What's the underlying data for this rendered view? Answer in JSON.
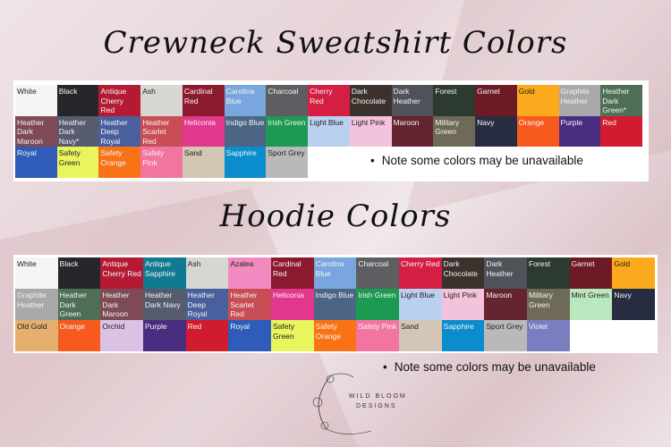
{
  "crewneck": {
    "title": "Crewneck Sweatshirt Colors",
    "note": "Note some colors may be unavailable",
    "swatches": [
      [
        "White",
        "#f4f4f4",
        1
      ],
      [
        "Black",
        "#27272b",
        0
      ],
      [
        "Antique Cherry Red",
        "#b51a33",
        0
      ],
      [
        "Ash",
        "#d8d6d3",
        1
      ],
      [
        "Cardinal Red",
        "#8b1a2e",
        0
      ],
      [
        "Carolina Blue",
        "#79a6dc",
        0
      ],
      [
        "Charcoal",
        "#5e5e62",
        0
      ],
      [
        "Cherry Red",
        "#d41e42",
        0
      ],
      [
        "Dark Chocolate",
        "#3b312d",
        0
      ],
      [
        "Dark Heather",
        "#4f5259",
        0
      ],
      [
        "Forest",
        "#2d3a2f",
        0
      ],
      [
        "Garnet",
        "#6e1a24",
        0
      ],
      [
        "Gold",
        "#fbaa1e",
        1
      ],
      [
        "Graphite Heather",
        "#a9a9ab",
        0
      ],
      [
        "Heather Dark Green*",
        "#4e6e55",
        0
      ],
      [
        "Heather Dark Maroon",
        "#7e4a55",
        0
      ],
      [
        "Heather Dark Navy*",
        "#565b6e",
        0
      ],
      [
        "Heather Deep Royal",
        "#4a5f9e",
        0
      ],
      [
        "Heather Scarlet Red",
        "#c94d55",
        0
      ],
      [
        "Heliconia",
        "#e2378c",
        0
      ],
      [
        "Indigo Blue",
        "#4c6585",
        0
      ],
      [
        "Irish Green",
        "#1c9a52",
        0
      ],
      [
        "Light Blue",
        "#b9d1ee",
        1
      ],
      [
        "Light Pink",
        "#f3c3dc",
        1
      ],
      [
        "Maroon",
        "#652530",
        0
      ],
      [
        "Military Green",
        "#6e6a57",
        0
      ],
      [
        "Navy",
        "#272c40",
        0
      ],
      [
        "Orange",
        "#f85a1e",
        0
      ],
      [
        "Purple",
        "#4b2d80",
        0
      ],
      [
        "Red",
        "#d01c2e",
        0
      ],
      [
        "Royal",
        "#2f5cb8",
        0
      ],
      [
        "Safety Green",
        "#e8f55c",
        1
      ],
      [
        "Safety Orange",
        "#f97316",
        0
      ],
      [
        "Safety Pink",
        "#f275a0",
        0
      ],
      [
        "Sand",
        "#d3c6b5",
        1
      ],
      [
        "Sapphire",
        "#0a8ccd",
        0
      ],
      [
        "Sport Grey",
        "#b9b9b9",
        1
      ]
    ]
  },
  "hoodie": {
    "title": "Hoodie Colors",
    "note": "Note some colors may be unavailable",
    "swatches": [
      [
        "White",
        "#f4f4f4",
        1
      ],
      [
        "Black",
        "#27272b",
        0
      ],
      [
        "Antique Cherry Red",
        "#b51a33",
        0
      ],
      [
        "Antique Sapphire",
        "#0f7a92",
        0
      ],
      [
        "Ash",
        "#d8d6d3",
        1
      ],
      [
        "Azalea",
        "#f28ac2",
        1
      ],
      [
        "Cardinal Red",
        "#8b1a2e",
        0
      ],
      [
        "Carolina Blue",
        "#79a6dc",
        0
      ],
      [
        "Charcoal",
        "#5e5e62",
        0
      ],
      [
        "Cherry Red",
        "#d41e42",
        0
      ],
      [
        "Dark Chocolate",
        "#3b312d",
        0
      ],
      [
        "Dark Heather",
        "#4f5259",
        0
      ],
      [
        "Forest",
        "#2d3a2f",
        0
      ],
      [
        "Garnet",
        "#6e1a24",
        0
      ],
      [
        "Gold",
        "#fbaa1e",
        1
      ],
      [
        "Graphite Heather",
        "#a9a9ab",
        0
      ],
      [
        "Heather Dark Green",
        "#4e6e55",
        0
      ],
      [
        "Heather Dark Maroon",
        "#7e4a55",
        0
      ],
      [
        "Heather Dark Navy",
        "#565b6e",
        0
      ],
      [
        "Heather Deep Royal",
        "#4a5f9e",
        0
      ],
      [
        "Heather Scarlet Red",
        "#c94d55",
        0
      ],
      [
        "Heliconia",
        "#e2378c",
        0
      ],
      [
        "Indigo Blue",
        "#4c6585",
        0
      ],
      [
        "Irish Green",
        "#1c9a52",
        0
      ],
      [
        "Light Blue",
        "#b9d1ee",
        1
      ],
      [
        "Light Pink",
        "#f3c3dc",
        1
      ],
      [
        "Maroon",
        "#652530",
        0
      ],
      [
        "Military Green",
        "#6e6a57",
        0
      ],
      [
        "Mint Green",
        "#b9e8bf",
        1
      ],
      [
        "Navy",
        "#272c40",
        0
      ],
      [
        "Old Gold",
        "#e3b070",
        1
      ],
      [
        "Orange",
        "#f85a1e",
        0
      ],
      [
        "Orchid",
        "#d9c2e4",
        1
      ],
      [
        "Purple",
        "#4b2d80",
        0
      ],
      [
        "Red",
        "#d01c2e",
        0
      ],
      [
        "Royal",
        "#2f5cb8",
        0
      ],
      [
        "Safety Green",
        "#e8f55c",
        1
      ],
      [
        "Safety Orange",
        "#f97316",
        0
      ],
      [
        "Safety Pink",
        "#f275a0",
        0
      ],
      [
        "Sand",
        "#d3c6b5",
        1
      ],
      [
        "Sapphire",
        "#0a8ccd",
        0
      ],
      [
        "Sport Grey",
        "#b9b9b9",
        1
      ],
      [
        "Violet",
        "#7a7dc0",
        0
      ]
    ]
  },
  "logo": {
    "line1": "WILD BLOOM",
    "line2": "DESIGNS"
  }
}
